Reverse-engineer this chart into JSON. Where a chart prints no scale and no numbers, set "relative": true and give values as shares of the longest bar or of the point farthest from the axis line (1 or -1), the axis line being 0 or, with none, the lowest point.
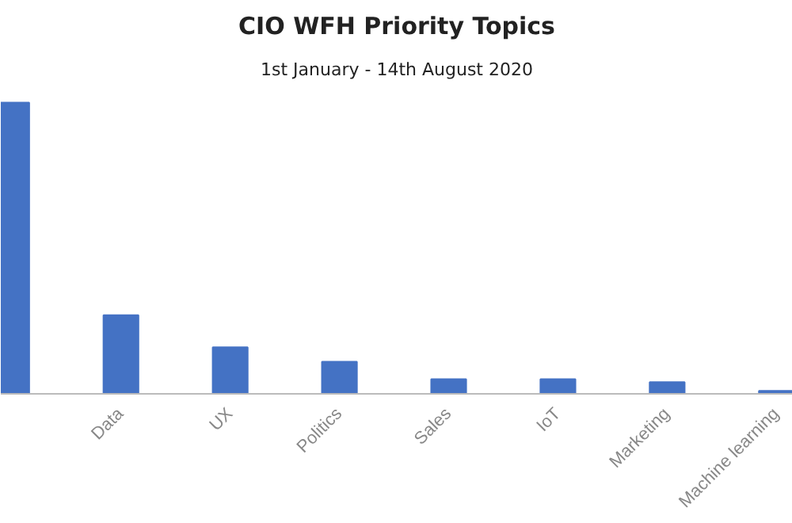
{
  "chart_data": {
    "type": "bar",
    "title": "CIO WFH Priority Topics",
    "subtitle": "1st January - 14th August 2020",
    "categories": [
      null,
      "Data",
      "UX",
      "Politics",
      "Sales",
      "IoT",
      "Marketing",
      "Machine learning"
    ],
    "values": [
      1,
      0.27,
      0.16,
      0.11,
      0.05,
      0.05,
      0.04,
      0.01
    ],
    "color": "#4472c4",
    "relative": true,
    "grid": false
  }
}
